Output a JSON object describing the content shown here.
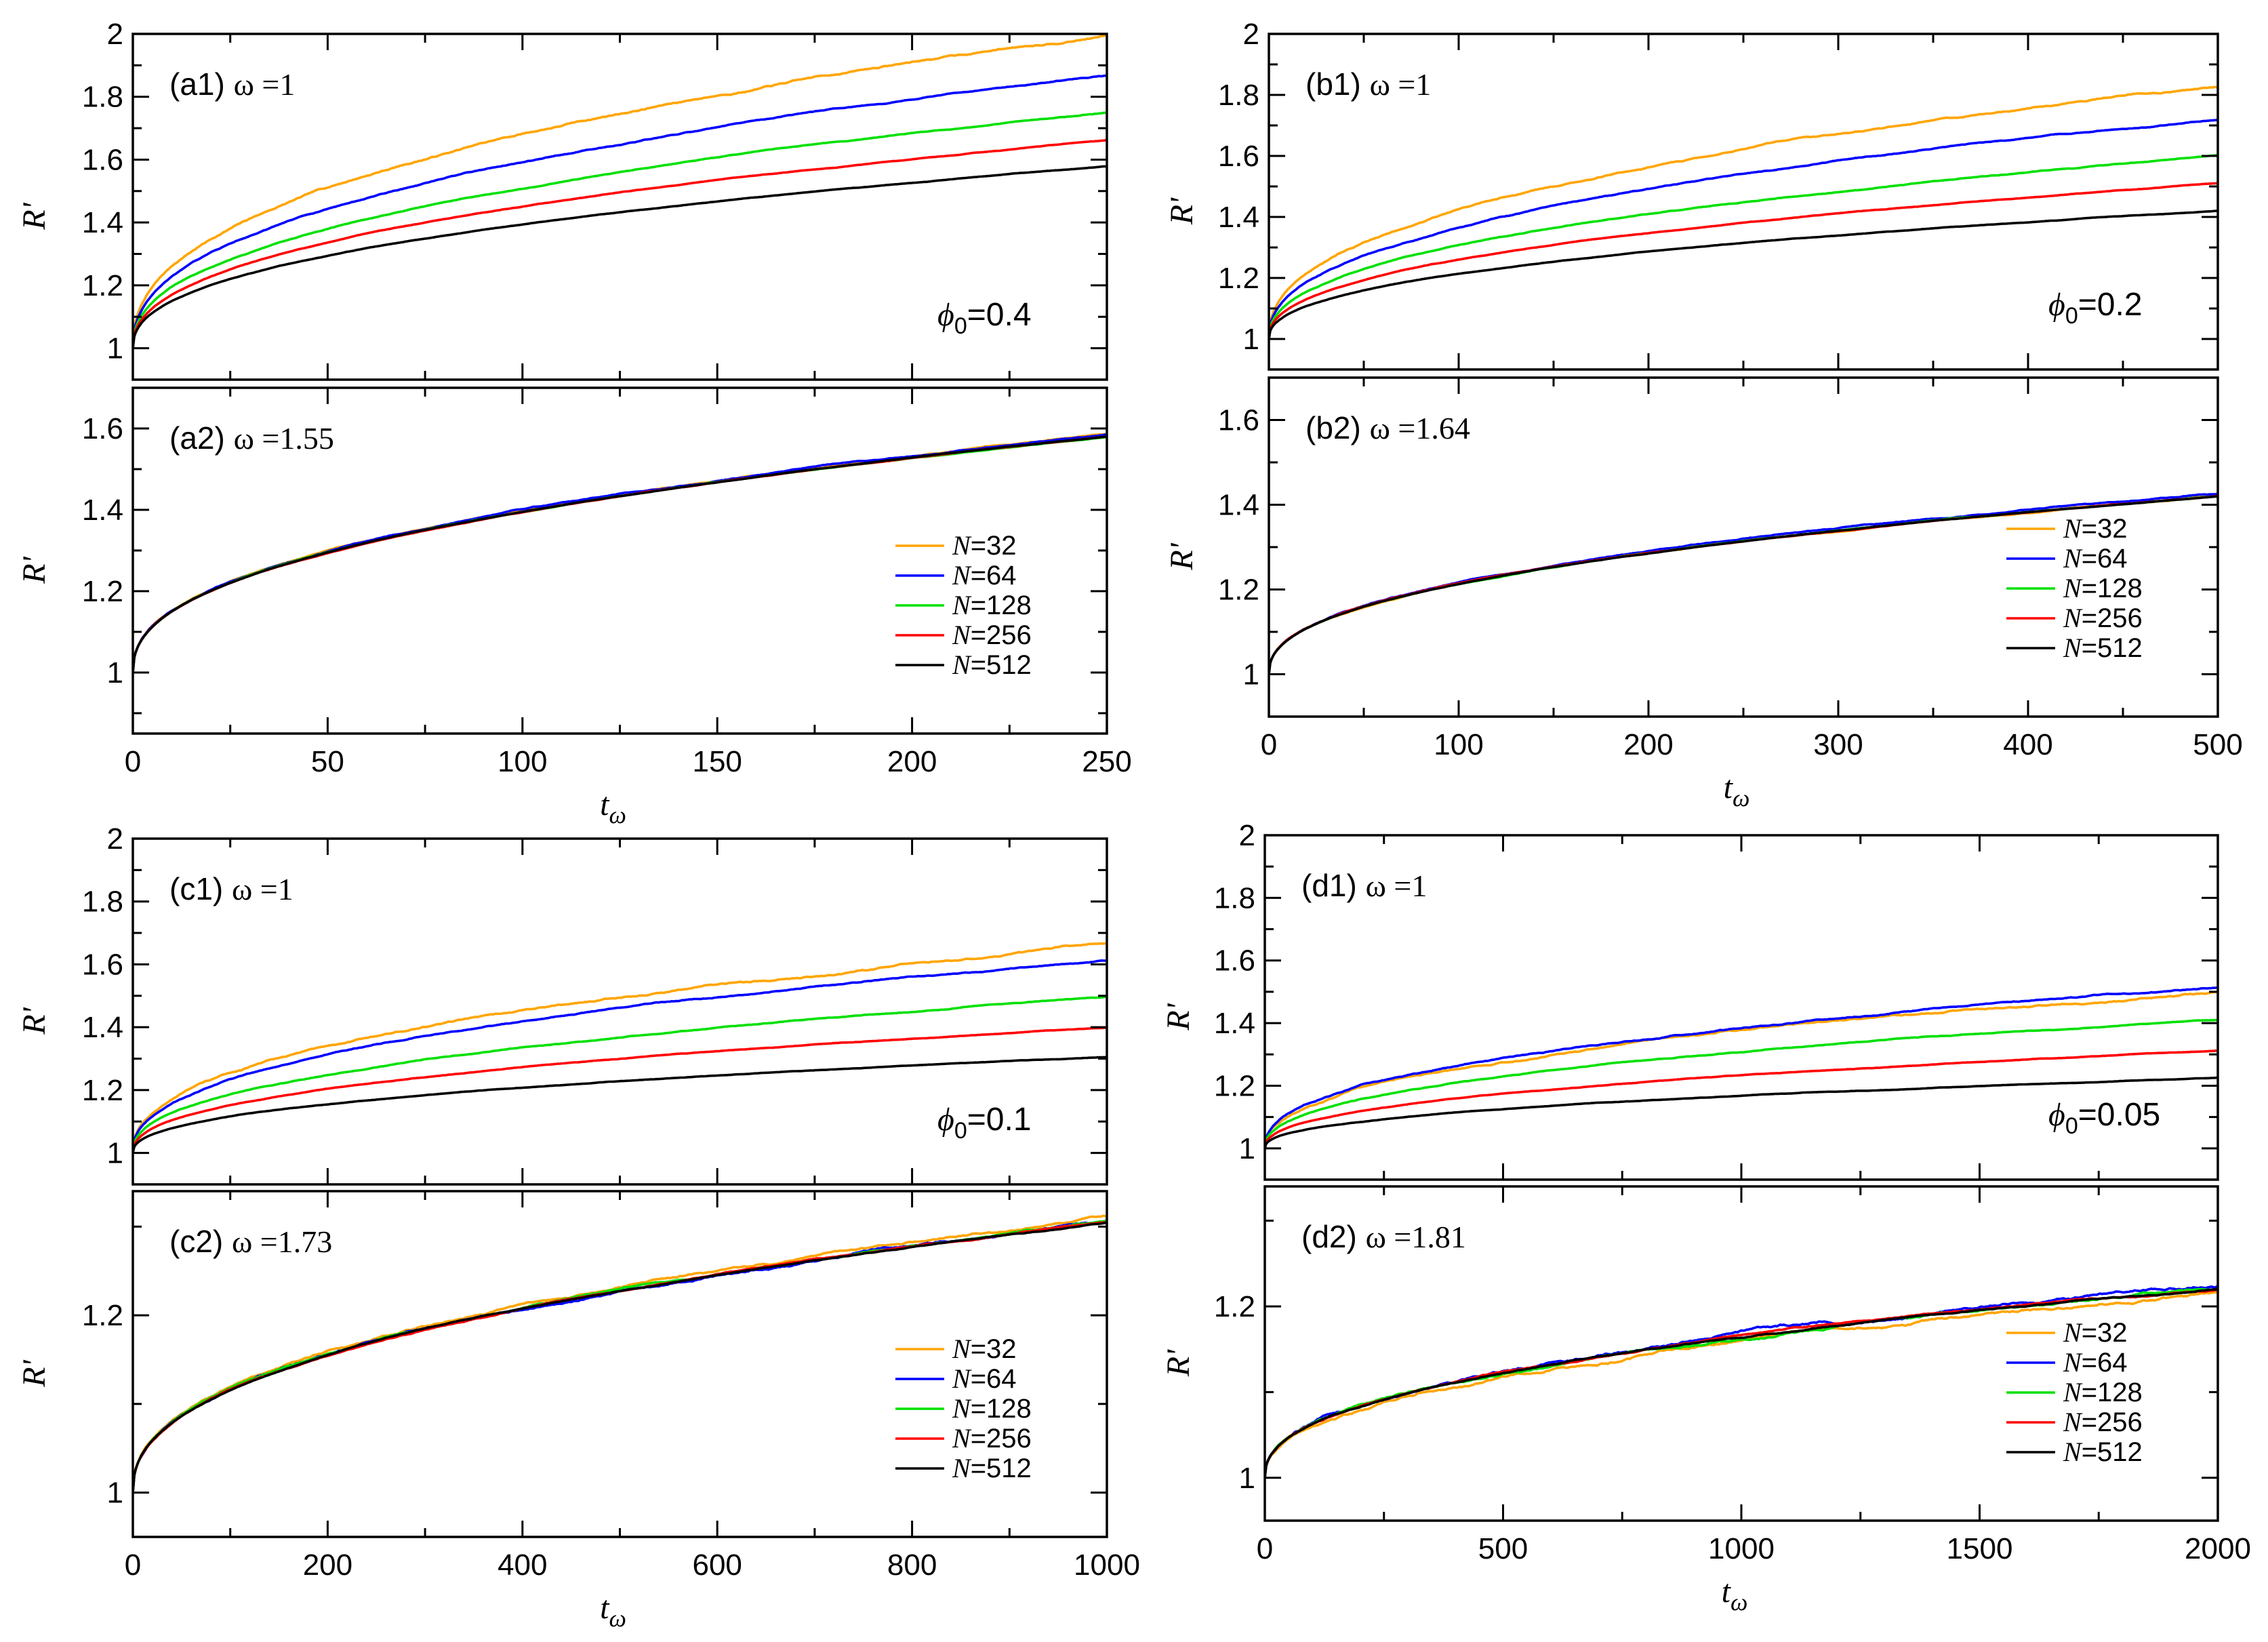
{
  "figure": {
    "colors": {
      "N32": "#ffa500",
      "N64": "#0000ff",
      "N128": "#00e000",
      "N256": "#ff0000",
      "N512": "#000000"
    },
    "legend": [
      "N=32",
      "N=64",
      "N=128",
      "N=256",
      "N=512"
    ]
  },
  "chart_data": [
    {
      "id": "a1",
      "type": "line",
      "panel_label": "(a1)",
      "omega_label": "ω =1",
      "phi_label": "ϕ",
      "phi_sub": "0",
      "phi_value": "=0.4",
      "xlim": [
        0,
        250
      ],
      "ylim": [
        0.9,
        2.0
      ],
      "yticks": [
        1,
        1.2,
        1.4,
        1.6,
        1.8,
        2
      ],
      "ytick_labels": [
        "1",
        "1.2",
        "1.4",
        "1.6",
        "1.8",
        "2"
      ],
      "ylabel": "R'",
      "series": [
        {
          "name": "N=32",
          "start": 1.0,
          "end": 2.0,
          "noise": 0.007
        },
        {
          "name": "N=64",
          "start": 1.0,
          "end": 1.87,
          "noise": 0.004
        },
        {
          "name": "N=128",
          "start": 1.0,
          "end": 1.75,
          "noise": 0.003
        },
        {
          "name": "N=256",
          "start": 1.0,
          "end": 1.66,
          "noise": 0.002
        },
        {
          "name": "N=512",
          "start": 1.0,
          "end": 1.58,
          "noise": 0.0015
        }
      ]
    },
    {
      "id": "a2",
      "type": "line",
      "panel_label": "(a2)",
      "omega_label": "ω =1.55",
      "xlim": [
        0,
        250
      ],
      "ylim": [
        0.85,
        1.7
      ],
      "yticks": [
        1,
        1.2,
        1.4,
        1.6
      ],
      "ytick_labels": [
        "1",
        "1.2",
        "1.4",
        "1.6"
      ],
      "xticks": [
        0,
        50,
        100,
        150,
        200,
        250
      ],
      "xtick_labels": [
        "0",
        "50",
        "100",
        "150",
        "200",
        "250"
      ],
      "xlabel": "t",
      "xlabel_sub": "ω",
      "ylabel": "R'",
      "legend": [
        "N=32",
        "N=64",
        "N=128",
        "N=256",
        "N=512"
      ],
      "series": [
        {
          "name": "N=32",
          "start": 1.0,
          "end": 1.585,
          "noise": 0.003
        },
        {
          "name": "N=64",
          "start": 1.0,
          "end": 1.585,
          "noise": 0.003
        },
        {
          "name": "N=128",
          "start": 1.0,
          "end": 1.58,
          "noise": 0.002
        },
        {
          "name": "N=256",
          "start": 1.0,
          "end": 1.58,
          "noise": 0.0015
        },
        {
          "name": "N=512",
          "start": 1.0,
          "end": 1.58,
          "noise": 0.001
        }
      ]
    },
    {
      "id": "b1",
      "type": "line",
      "panel_label": "(b1)",
      "omega_label": "ω =1",
      "phi_label": "ϕ",
      "phi_sub": "0",
      "phi_value": "=0.2",
      "xlim": [
        0,
        500
      ],
      "ylim": [
        0.9,
        2.0
      ],
      "yticks": [
        1,
        1.2,
        1.4,
        1.6,
        1.8,
        2
      ],
      "ytick_labels": [
        "1",
        "1.2",
        "1.4",
        "1.6",
        "1.8",
        "2"
      ],
      "ylabel": "R'",
      "series": [
        {
          "name": "N=32",
          "start": 1.0,
          "end": 1.83,
          "noise": 0.006
        },
        {
          "name": "N=64",
          "start": 1.0,
          "end": 1.72,
          "noise": 0.004
        },
        {
          "name": "N=128",
          "start": 1.0,
          "end": 1.6,
          "noise": 0.003
        },
        {
          "name": "N=256",
          "start": 1.0,
          "end": 1.51,
          "noise": 0.002
        },
        {
          "name": "N=512",
          "start": 1.0,
          "end": 1.42,
          "noise": 0.0015
        }
      ]
    },
    {
      "id": "b2",
      "type": "line",
      "panel_label": "(b2)",
      "omega_label": "ω =1.64",
      "xlim": [
        0,
        500
      ],
      "ylim": [
        0.9,
        1.7
      ],
      "yticks": [
        1,
        1.2,
        1.4,
        1.6
      ],
      "ytick_labels": [
        "1",
        "1.2",
        "1.4",
        "1.6"
      ],
      "xticks": [
        0,
        100,
        200,
        300,
        400,
        500
      ],
      "xtick_labels": [
        "0",
        "100",
        "200",
        "300",
        "400",
        "500"
      ],
      "xlabel": "t",
      "xlabel_sub": "ω",
      "ylabel": "R'",
      "legend": [
        "N=32",
        "N=64",
        "N=128",
        "N=256",
        "N=512"
      ],
      "series": [
        {
          "name": "N=32",
          "start": 1.0,
          "end": 1.42,
          "noise": 0.003
        },
        {
          "name": "N=64",
          "start": 1.0,
          "end": 1.425,
          "noise": 0.003
        },
        {
          "name": "N=128",
          "start": 1.0,
          "end": 1.42,
          "noise": 0.002
        },
        {
          "name": "N=256",
          "start": 1.0,
          "end": 1.42,
          "noise": 0.0015
        },
        {
          "name": "N=512",
          "start": 1.0,
          "end": 1.42,
          "noise": 0.001
        }
      ]
    },
    {
      "id": "c1",
      "type": "line",
      "panel_label": "(c1)",
      "omega_label": "ω =1",
      "phi_label": "ϕ",
      "phi_sub": "0",
      "phi_value": "=0.1",
      "xlim": [
        0,
        1000
      ],
      "ylim": [
        0.9,
        2.0
      ],
      "yticks": [
        1,
        1.2,
        1.4,
        1.6,
        1.8,
        2
      ],
      "ytick_labels": [
        "1",
        "1.2",
        "1.4",
        "1.6",
        "1.8",
        "2"
      ],
      "ylabel": "R'",
      "series": [
        {
          "name": "N=32",
          "start": 1.0,
          "end": 1.66,
          "noise": 0.007
        },
        {
          "name": "N=64",
          "start": 1.0,
          "end": 1.615,
          "noise": 0.004
        },
        {
          "name": "N=128",
          "start": 1.0,
          "end": 1.495,
          "noise": 0.003
        },
        {
          "name": "N=256",
          "start": 1.0,
          "end": 1.4,
          "noise": 0.002
        },
        {
          "name": "N=512",
          "start": 1.0,
          "end": 1.305,
          "noise": 0.0015
        }
      ]
    },
    {
      "id": "c2",
      "type": "line",
      "panel_label": "(c2)",
      "omega_label": "ω =1.73",
      "xlim": [
        0,
        1000
      ],
      "ylim": [
        0.95,
        1.34
      ],
      "yticks": [
        1,
        1.2
      ],
      "ytick_labels": [
        "1",
        "1.2"
      ],
      "xticks": [
        0,
        200,
        400,
        600,
        800,
        1000
      ],
      "xtick_labels": [
        "0",
        "200",
        "400",
        "600",
        "800",
        "1000"
      ],
      "xlabel": "t",
      "xlabel_sub": "ω",
      "ylabel": "R'",
      "legend": [
        "N=32",
        "N=64",
        "N=128",
        "N=256",
        "N=512"
      ],
      "series": [
        {
          "name": "N=32",
          "start": 1.0,
          "end": 1.31,
          "noise": 0.003
        },
        {
          "name": "N=64",
          "start": 1.0,
          "end": 1.305,
          "noise": 0.003
        },
        {
          "name": "N=128",
          "start": 1.0,
          "end": 1.305,
          "noise": 0.002
        },
        {
          "name": "N=256",
          "start": 1.0,
          "end": 1.305,
          "noise": 0.0015
        },
        {
          "name": "N=512",
          "start": 1.0,
          "end": 1.305,
          "noise": 0.001
        }
      ]
    },
    {
      "id": "d1",
      "type": "line",
      "panel_label": "(d1)",
      "omega_label": "ω =1",
      "phi_label": "ϕ",
      "phi_sub": "0",
      "phi_value": "=0.05",
      "xlim": [
        0,
        2000
      ],
      "ylim": [
        0.9,
        2.0
      ],
      "yticks": [
        1,
        1.2,
        1.4,
        1.6,
        1.8,
        2
      ],
      "ytick_labels": [
        "1",
        "1.2",
        "1.4",
        "1.6",
        "1.8",
        "2"
      ],
      "ylabel": "R'",
      "series": [
        {
          "name": "N=32",
          "start": 1.0,
          "end": 1.5,
          "noise": 0.007
        },
        {
          "name": "N=64",
          "start": 1.0,
          "end": 1.515,
          "noise": 0.005
        },
        {
          "name": "N=128",
          "start": 1.0,
          "end": 1.41,
          "noise": 0.003
        },
        {
          "name": "N=256",
          "start": 1.0,
          "end": 1.31,
          "noise": 0.002
        },
        {
          "name": "N=512",
          "start": 1.0,
          "end": 1.225,
          "noise": 0.0015
        }
      ]
    },
    {
      "id": "d2",
      "type": "line",
      "panel_label": "(d2)",
      "omega_label": "ω =1.81",
      "xlim": [
        0,
        2000
      ],
      "ylim": [
        0.95,
        1.34
      ],
      "yticks": [
        1,
        1.2
      ],
      "ytick_labels": [
        "1",
        "1.2"
      ],
      "xticks": [
        0,
        500,
        1000,
        1500,
        2000
      ],
      "xtick_labels": [
        "0",
        "500",
        "1000",
        "1500",
        "2000"
      ],
      "xlabel": "t",
      "xlabel_sub": "ω",
      "ylabel": "R'",
      "legend": [
        "N=32",
        "N=64",
        "N=128",
        "N=256",
        "N=512"
      ],
      "series": [
        {
          "name": "N=32",
          "start": 1.0,
          "end": 1.215,
          "noise": 0.004
        },
        {
          "name": "N=64",
          "start": 1.0,
          "end": 1.225,
          "noise": 0.004
        },
        {
          "name": "N=128",
          "start": 1.0,
          "end": 1.22,
          "noise": 0.003
        },
        {
          "name": "N=256",
          "start": 1.0,
          "end": 1.22,
          "noise": 0.002
        },
        {
          "name": "N=512",
          "start": 1.0,
          "end": 1.22,
          "noise": 0.0015
        }
      ]
    }
  ]
}
